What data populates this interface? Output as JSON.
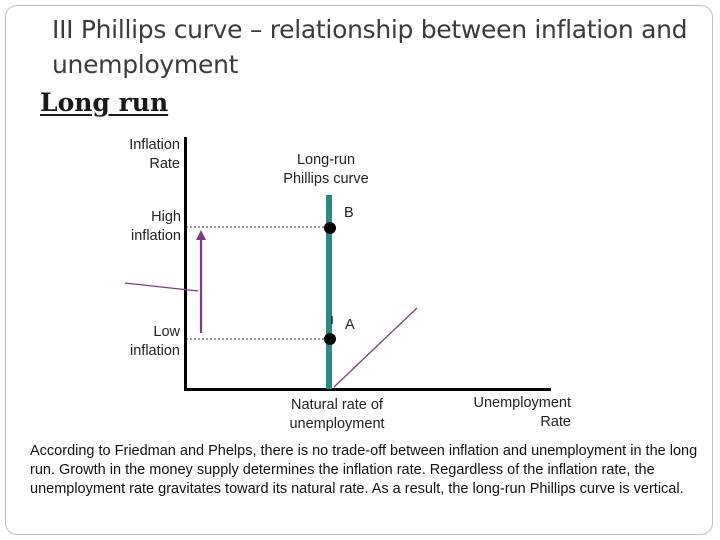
{
  "slide": {
    "title": "III Phillips curve – relationship between inflation and unemployment",
    "subtitle": "Long run",
    "caption": "According to Friedman and Phelps, there is no trade-off between inflation and unemployment in the long run. Growth in the money supply determines the inflation rate. Regardless of the inflation rate, the unemployment rate gravitates toward its natural rate. As a result, the long-run Phillips curve is vertical."
  },
  "diagram": {
    "y_axis_label_line1": "Inflation",
    "y_axis_label_line2": "Rate",
    "x_axis_label_line1": "Unemployment",
    "x_axis_label_line2": "Rate",
    "curve_label_line1": "Long-run",
    "curve_label_line2": "Phillips curve",
    "high_label_line1": "High",
    "high_label_line2": "inflation",
    "low_label_line1": "Low",
    "low_label_line2": "inflation",
    "natural_rate_line1": "Natural rate of",
    "natural_rate_line2": "unemployment",
    "point_a": "A",
    "point_b": "B",
    "colors": {
      "vertical_curve": "#2a8a84",
      "short_run_curves": "#7b3a8c",
      "arrow": "#7b3a8c",
      "axes": "#000000",
      "points": "#000000"
    }
  }
}
